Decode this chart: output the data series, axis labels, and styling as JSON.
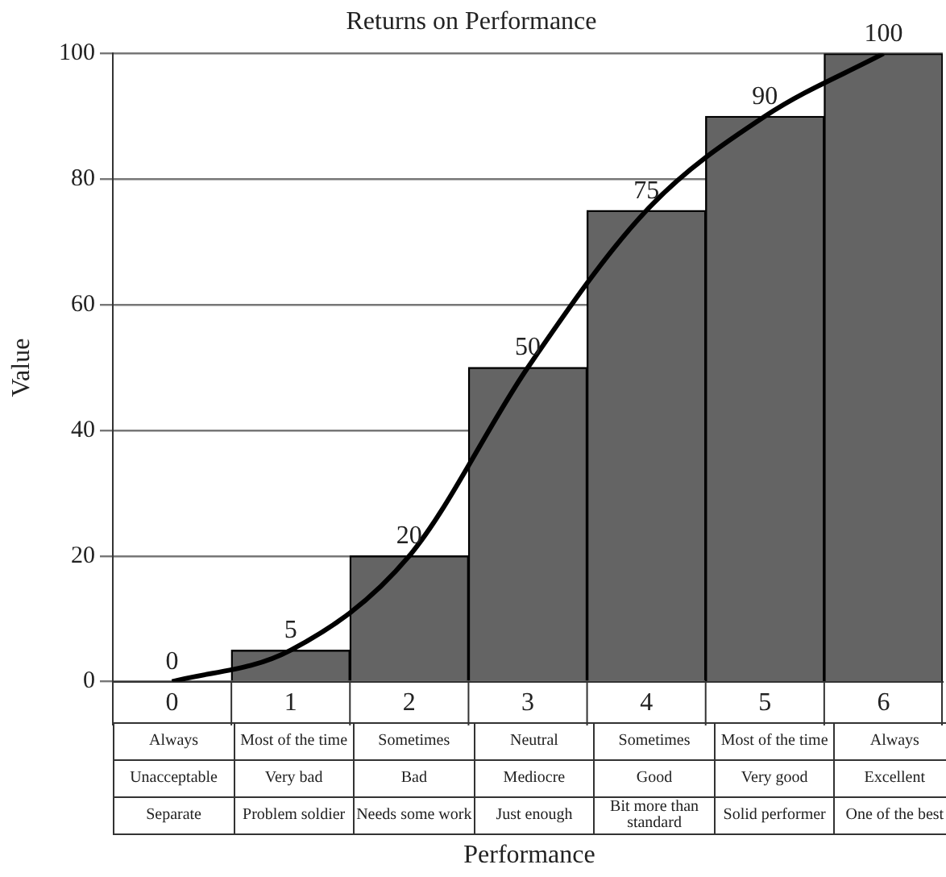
{
  "chart_data": {
    "type": "bar",
    "title": "Returns on Performance",
    "xlabel": "Performance",
    "ylabel": "Value",
    "categories": [
      "0",
      "1",
      "2",
      "3",
      "4",
      "5",
      "6"
    ],
    "series": [
      {
        "color": "#646464",
        "values": [
          0,
          5,
          20,
          50,
          75,
          90,
          100
        ],
        "value_labels": [
          "0",
          "5",
          "20",
          "50",
          "75",
          "90",
          "100"
        ]
      },
      {
        "type": "line",
        "color": "#000000",
        "values": [
          0,
          5,
          20,
          50,
          75,
          90,
          100
        ]
      }
    ],
    "ylim": [
      0,
      100
    ],
    "yticks": [
      0,
      20,
      40,
      60,
      80,
      100
    ],
    "grid": "y",
    "marker": "none",
    "line_style": "solid",
    "legend": false,
    "annotations": [
      "Always",
      "Most of the time",
      "Sometimes",
      "Neutral",
      "Sometimes",
      "Most of the time",
      "Always",
      "Unacceptable",
      "Very bad",
      "Bad",
      "Mediocre",
      "Good",
      "Very good",
      "Excellent",
      "Separate",
      "Problem soldier",
      "Needs some work",
      "Just enough",
      "Bit more than standard",
      "Solid performer",
      "One of the best"
    ]
  }
}
